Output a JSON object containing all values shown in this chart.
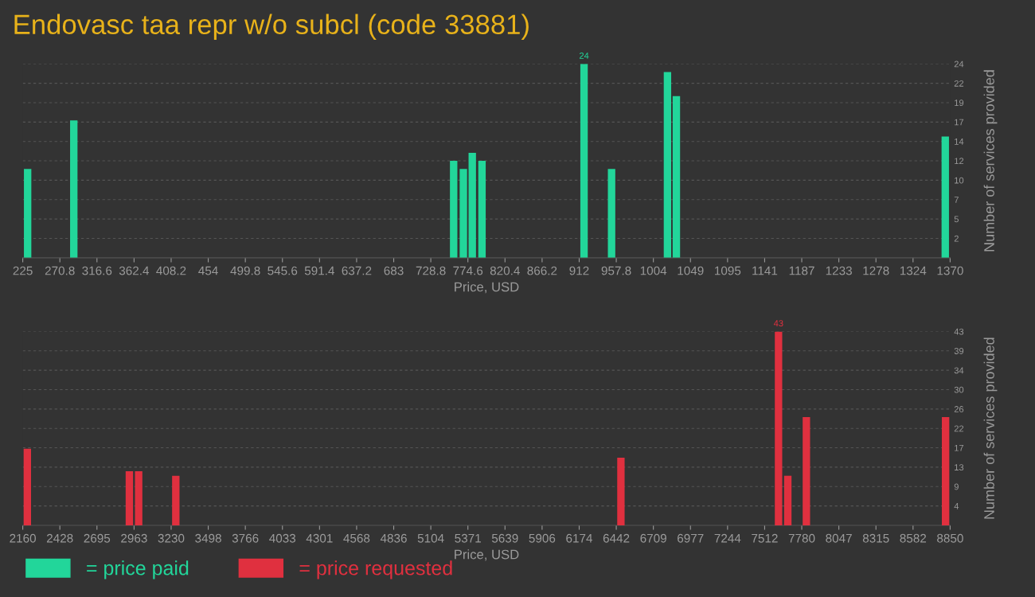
{
  "chart_data": [
    {
      "type": "bar",
      "title": "Endovasc taa repr w/o subcl (code 33881)",
      "xlabel": "Price, USD",
      "ylabel": "Number of services provided",
      "x": [
        231,
        288,
        757,
        769,
        780,
        792,
        918,
        952,
        1021,
        1032,
        1364
      ],
      "series": [
        {
          "name": "= price paid",
          "color": "#22d69a",
          "values": [
            11,
            17,
            12,
            11,
            13,
            12,
            24,
            11,
            23,
            20,
            15
          ],
          "value_labels": [
            null,
            null,
            null,
            null,
            null,
            null,
            "24",
            null,
            null,
            null,
            null
          ]
        }
      ],
      "xlim": [
        225,
        1370
      ],
      "xticks": [
        225,
        270.8,
        316.6,
        362.4,
        408.2,
        454,
        499.8,
        545.6,
        591.4,
        637.2,
        683,
        728.8,
        774.6,
        820.4,
        866.2,
        912,
        957.8,
        {
          "value": 1003.6,
          "label": "1004"
        },
        {
          "value": 1049.4,
          "label": "1049"
        },
        {
          "value": 1095.2,
          "label": "1095"
        },
        1141,
        {
          "value": 1186.8,
          "label": "1187"
        },
        {
          "value": 1232.6,
          "label": "1233"
        },
        {
          "value": 1278.4,
          "label": "1278"
        },
        {
          "value": 1324.2,
          "label": "1324"
        },
        1370
      ],
      "ylim": [
        0,
        24
      ],
      "yticks": [
        {
          "value": 2.4,
          "label": "2"
        },
        {
          "value": 4.8,
          "label": "5"
        },
        {
          "value": 7.2,
          "label": "7"
        },
        {
          "value": 9.6,
          "label": "10"
        },
        12,
        {
          "value": 14.4,
          "label": "14"
        },
        {
          "value": 16.8,
          "label": "17"
        },
        {
          "value": 19.2,
          "label": "19"
        },
        {
          "value": 21.6,
          "label": "22"
        },
        24
      ],
      "grid": "y",
      "legend": "bottom left"
    },
    {
      "type": "bar",
      "xlabel": "Price, USD",
      "ylabel": "Number of services provided",
      "x": [
        2193,
        2929,
        2996,
        3264,
        6475,
        7612,
        7679,
        7813,
        8817
      ],
      "series": [
        {
          "name": "= price requested",
          "color": "#e0303f",
          "values": [
            17,
            12,
            12,
            11,
            15,
            43,
            11,
            24,
            24
          ],
          "value_labels": [
            null,
            null,
            null,
            null,
            null,
            "43",
            null,
            null,
            null
          ]
        }
      ],
      "xlim": [
        2160,
        8850
      ],
      "xticks": [
        2160,
        {
          "value": 2427.6,
          "label": "2428"
        },
        {
          "value": 2695.2,
          "label": "2695"
        },
        {
          "value": 2962.8,
          "label": "2963"
        },
        {
          "value": 3230.4,
          "label": "3230"
        },
        3498,
        {
          "value": 3765.6,
          "label": "3766"
        },
        {
          "value": 4033.2,
          "label": "4033"
        },
        {
          "value": 4300.8,
          "label": "4301"
        },
        {
          "value": 4568.4,
          "label": "4568"
        },
        4836,
        {
          "value": 5103.6,
          "label": "5104"
        },
        {
          "value": 5371.2,
          "label": "5371"
        },
        {
          "value": 5638.8,
          "label": "5639"
        },
        {
          "value": 5906.4,
          "label": "5906"
        },
        6174,
        {
          "value": 6441.6,
          "label": "6442"
        },
        {
          "value": 6709.2,
          "label": "6709"
        },
        {
          "value": 6976.8,
          "label": "6977"
        },
        {
          "value": 7244.4,
          "label": "7244"
        },
        7512,
        {
          "value": 7779.6,
          "label": "7780"
        },
        {
          "value": 8047.2,
          "label": "8047"
        },
        {
          "value": 8314.8,
          "label": "8315"
        },
        {
          "value": 8582.4,
          "label": "8582"
        },
        8850
      ],
      "ylim": [
        0,
        43
      ],
      "yticks": [
        {
          "value": 4.3,
          "label": "4"
        },
        {
          "value": 8.6,
          "label": "9"
        },
        {
          "value": 12.9,
          "label": "13"
        },
        {
          "value": 17.2,
          "label": "17"
        },
        {
          "value": 21.5,
          "label": "22"
        },
        {
          "value": 25.8,
          "label": "26"
        },
        {
          "value": 30.1,
          "label": "30"
        },
        {
          "value": 34.4,
          "label": "34"
        },
        {
          "value": 38.7,
          "label": "39"
        },
        43
      ],
      "grid": "y",
      "legend": "bottom left"
    }
  ]
}
